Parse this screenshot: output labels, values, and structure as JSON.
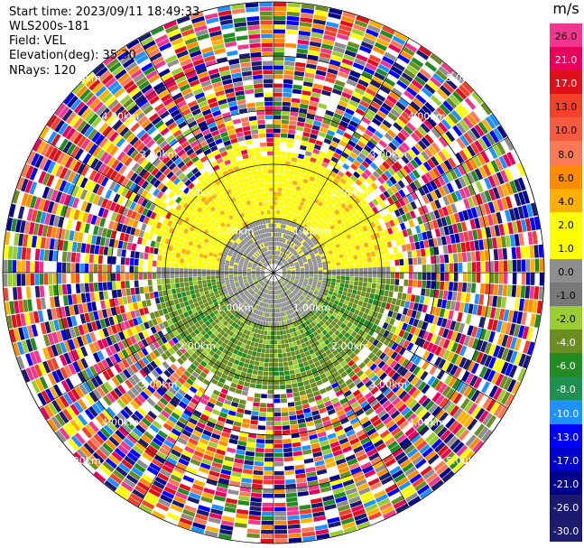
{
  "header": {
    "start_time": "Start time: 2023/09/11 18:49:33",
    "instrument": "WLS200s-181",
    "field": "Field: VEL",
    "elevation": "Elevation(deg): 35.30",
    "nrays": "NRays: 120"
  },
  "range_rings": {
    "labels": [
      "1.00km",
      "2.00km",
      "3.00km",
      "4.00km",
      "5.00km"
    ]
  },
  "colorbar": {
    "unit": "m/s",
    "ticks": [
      "26.0",
      "21.0",
      "17.0",
      "13.0",
      "10.0",
      "8.0",
      "6.0",
      "4.0",
      "2.0",
      "1.0",
      "0.0",
      "-1.0",
      "-2.0",
      "-4.0",
      "-6.0",
      "-8.0",
      "-10.0",
      "-13.0",
      "-17.0",
      "-21.0",
      "-26.0",
      "-30.0"
    ],
    "colors": [
      "#f0368f",
      "#e8005a",
      "#e0101a",
      "#f5402a",
      "#f85a40",
      "#fa7a55",
      "#ff8c00",
      "#ffb000",
      "#ffff00",
      "#ffff00",
      "#8e8e8e",
      "#787878",
      "#9acd32",
      "#6b8e23",
      "#228b22",
      "#1e9050",
      "#1e90ff",
      "#0000ff",
      "#0000cd",
      "#00008b",
      "#191970",
      "#1c1c6e"
    ]
  }
}
